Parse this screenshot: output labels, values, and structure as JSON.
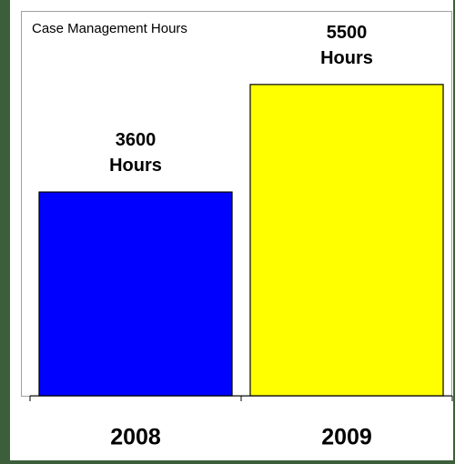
{
  "chart_data": {
    "type": "bar",
    "title": "Case Management Hours",
    "categories": [
      "2008",
      "2009"
    ],
    "series": [
      {
        "name": null,
        "colors": [
          "#0000ff",
          "#ffff00"
        ],
        "values": [
          3600,
          5500
        ]
      }
    ],
    "value_labels": [
      "3600 Hours",
      "5500 Hours"
    ],
    "ylim": [
      0,
      6800
    ]
  }
}
